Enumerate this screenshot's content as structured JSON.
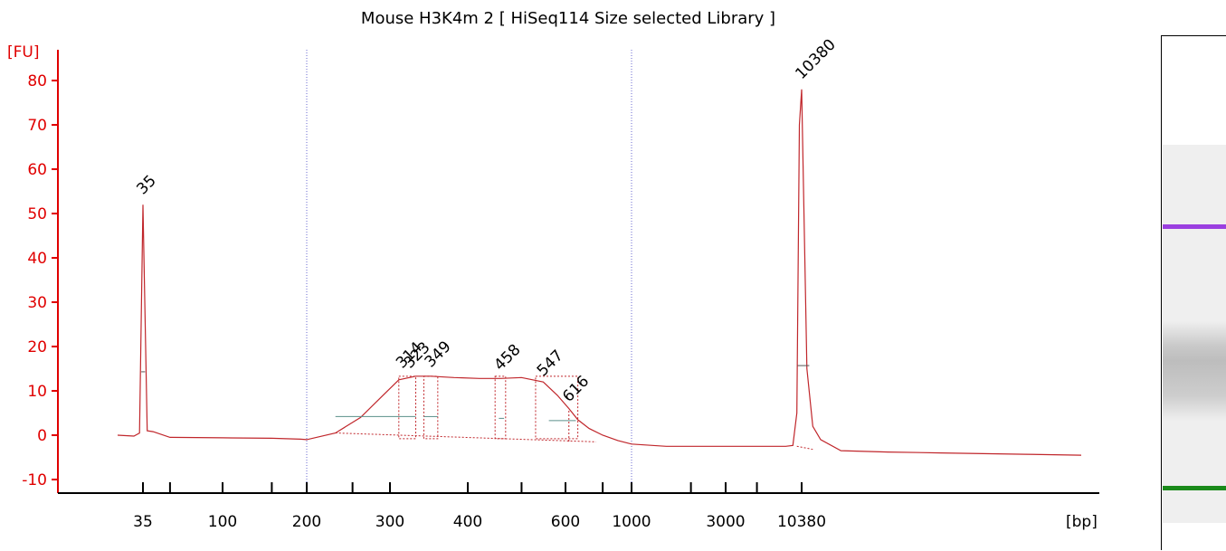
{
  "chart_data": {
    "type": "line",
    "title": "Mouse H3K4m 2  [ HiSeq114 Size selected Library ]",
    "ylabel": "[FU]",
    "xlabel": "[bp]",
    "ylim": [
      -12,
      86
    ],
    "x_ticks": [
      "35",
      "100",
      "200",
      "300",
      "400",
      "600",
      "1000",
      "3000",
      "10380"
    ],
    "y_ticks": [
      "-10",
      "0",
      "10",
      "20",
      "30",
      "40",
      "50",
      "60",
      "70",
      "80"
    ],
    "grid": "dotted vertical lines at 200 and 1000 bp",
    "trace": {
      "x_bp": [
        20,
        30,
        33,
        35,
        37,
        40,
        50,
        100,
        150,
        190,
        200,
        230,
        260,
        290,
        310,
        330,
        349,
        380,
        420,
        458,
        500,
        547,
        580,
        616,
        660,
        720,
        800,
        900,
        1000,
        1500,
        3000,
        6000,
        8000,
        9000,
        9600,
        10000,
        10380,
        10800,
        11300,
        12000,
        14000,
        20000,
        30000,
        50000,
        70000
      ],
      "y_fu": [
        0,
        -0.2,
        0.5,
        52,
        1,
        0.8,
        -0.5,
        -0.6,
        -0.7,
        -0.9,
        -1,
        0.5,
        4,
        9,
        12.5,
        13.3,
        13.3,
        13,
        12.8,
        12.8,
        13,
        12,
        9,
        6,
        3.5,
        1.5,
        0,
        -1.2,
        -2,
        -2.5,
        -2.5,
        -2.5,
        -2.5,
        -2.3,
        5,
        70,
        78,
        15,
        2,
        -1,
        -3.5,
        -3.8,
        -4,
        -4.3,
        -4.5
      ]
    },
    "peaks": [
      {
        "label": "35",
        "color": "#1a8a1a",
        "size_bp": 35,
        "height_fu": 52.5
      },
      {
        "label": "314",
        "color": "#000000",
        "size_bp": 314,
        "height_fu": 13.3
      },
      {
        "label": "323",
        "color": "#000000",
        "size_bp": 323,
        "height_fu": 13.3
      },
      {
        "label": "349",
        "color": "#000000",
        "size_bp": 349,
        "height_fu": 13.5
      },
      {
        "label": "458",
        "color": "#000000",
        "size_bp": 458,
        "height_fu": 12.8
      },
      {
        "label": "547",
        "color": "#000000",
        "size_bp": 547,
        "height_fu": 11.5
      },
      {
        "label": "616",
        "color": "#000000",
        "size_bp": 616,
        "height_fu": 5.7
      },
      {
        "label": "10380",
        "color": "#9b3fe0",
        "size_bp": 10380,
        "height_fu": 78.5
      }
    ],
    "colors": {
      "trace": "#c0262b",
      "axis": "#e00000",
      "lower_marker": "#1a8a1a",
      "upper_marker": "#9b3fe0",
      "baseline": "#5a8f8a"
    }
  },
  "gel": {
    "lower_marker_color": "#1a8a1a",
    "upper_marker_color": "#9b3fe0"
  }
}
